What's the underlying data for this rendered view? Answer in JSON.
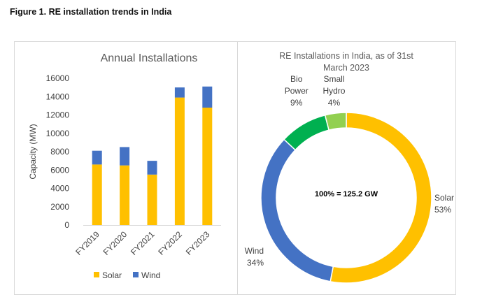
{
  "figure_title": "Figure 1. RE installation trends in India",
  "chart_data": [
    {
      "type": "bar",
      "stacked": true,
      "title": "Annual Installations",
      "ylabel": "Capacity (MW)",
      "xlabel": "",
      "categories": [
        "FY2019",
        "FY2020",
        "FY2021",
        "FY2022",
        "FY2023"
      ],
      "series": [
        {
          "name": "Solar",
          "color": "#FFC000",
          "values": [
            6600,
            6500,
            5500,
            13900,
            12800
          ]
        },
        {
          "name": "Wind",
          "color": "#4472C4",
          "values": [
            1500,
            2000,
            1500,
            1100,
            2300
          ]
        }
      ],
      "ylim": [
        0,
        16000
      ],
      "yticks": [
        "0",
        "2000",
        "4000",
        "6000",
        "8000",
        "10000",
        "12000",
        "14000",
        "16000"
      ],
      "legend_position": "bottom"
    },
    {
      "type": "pie",
      "donut": true,
      "title_lines": [
        "RE Installations in India, as of 31st",
        "March 2023"
      ],
      "center_label": "100% = 125.2 GW",
      "slices": [
        {
          "name": "Solar",
          "value": 53,
          "pct": "53%",
          "color": "#FFC000"
        },
        {
          "name": "Wind",
          "value": 34,
          "pct": "34%",
          "color": "#4472C4"
        },
        {
          "name": "Bio Power",
          "value": 9,
          "pct": "9%",
          "color": "#00B050",
          "name_lines": [
            "Bio",
            "Power"
          ]
        },
        {
          "name": "Small Hydro",
          "value": 4,
          "pct": "4%",
          "color": "#92D050",
          "name_lines": [
            "Small",
            "Hydro"
          ]
        }
      ]
    }
  ]
}
